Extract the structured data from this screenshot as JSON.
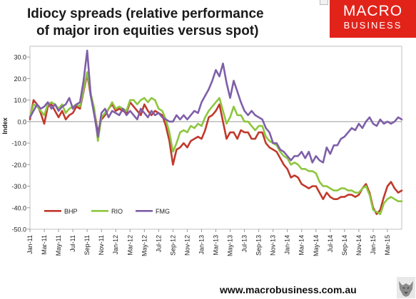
{
  "title_line1": "Idiocy spreads (relative performance",
  "title_line2": "of major iron equities versus spot)",
  "logo": {
    "line1": "MACRO",
    "line2": "BUSINESS",
    "color": "#e2231a"
  },
  "footer_url": "www.macrobusiness.com.au",
  "chart_data": {
    "type": "line",
    "ylabel": "Index",
    "ylim": [
      -50,
      35
    ],
    "yticks": [
      30,
      20,
      10,
      0,
      -10,
      -20,
      -30,
      -40,
      -50
    ],
    "ytick_labels": [
      "30.0",
      "20.0",
      "10.0",
      "0.0",
      "-10.0",
      "-20.0",
      "-30.0",
      "-40.0",
      "-50.0"
    ],
    "x_month_index_range": [
      0,
      52
    ],
    "xticks": [
      {
        "m": 0,
        "label": "Jan-11"
      },
      {
        "m": 2,
        "label": "Mar-11"
      },
      {
        "m": 4,
        "label": "May-11"
      },
      {
        "m": 6,
        "label": "Jul-11"
      },
      {
        "m": 8,
        "label": "Sep-11"
      },
      {
        "m": 10,
        "label": "Nov-11"
      },
      {
        "m": 12,
        "label": "Jan-12"
      },
      {
        "m": 14,
        "label": "Mar-12"
      },
      {
        "m": 16,
        "label": "May-12"
      },
      {
        "m": 18,
        "label": "Jul-12"
      },
      {
        "m": 20,
        "label": "Sep-12"
      },
      {
        "m": 22,
        "label": "Nov-12"
      },
      {
        "m": 24,
        "label": "Jan-13"
      },
      {
        "m": 26,
        "label": "Mar-13"
      },
      {
        "m": 28,
        "label": "May-13"
      },
      {
        "m": 30,
        "label": "Jul-13"
      },
      {
        "m": 32,
        "label": "Sep-13"
      },
      {
        "m": 34,
        "label": "Nov-13"
      },
      {
        "m": 36,
        "label": "Jan-14"
      },
      {
        "m": 38,
        "label": "Mar-14"
      },
      {
        "m": 40,
        "label": "May-14"
      },
      {
        "m": 42,
        "label": "Jul-14"
      },
      {
        "m": 44,
        "label": "Sep-14"
      },
      {
        "m": 46,
        "label": "Nov-14"
      },
      {
        "m": 48,
        "label": "Jan-15"
      },
      {
        "m": 50,
        "label": "Mar-15"
      }
    ],
    "legend": [
      "BHP",
      "RIO",
      "FMG"
    ],
    "legend_position": "lower-left",
    "grid": false,
    "series": [
      {
        "name": "BHP",
        "color": "#c0392b",
        "x": [
          0,
          0.5,
          1,
          1.5,
          2,
          2.5,
          3,
          3.5,
          4,
          4.5,
          5,
          5.5,
          6,
          6.5,
          7,
          7.5,
          8,
          8.5,
          9,
          9.5,
          10,
          10.5,
          11,
          11.5,
          12,
          12.5,
          13,
          13.5,
          14,
          14.5,
          15,
          15.5,
          16,
          16.5,
          17,
          17.5,
          18,
          18.5,
          19,
          19.5,
          20,
          20.5,
          21,
          21.5,
          22,
          22.5,
          23,
          23.5,
          24,
          24.5,
          25,
          25.5,
          26,
          26.5,
          27,
          27.5,
          28,
          28.5,
          29,
          29.5,
          30,
          30.5,
          31,
          31.5,
          32,
          32.5,
          33,
          33.5,
          34,
          34.5,
          35,
          35.5,
          36,
          36.5,
          37,
          37.5,
          38,
          38.5,
          39,
          39.5,
          40,
          40.5,
          41,
          41.5,
          42,
          42.5,
          43,
          43.5,
          44,
          44.5,
          45,
          45.5,
          46,
          46.5,
          47,
          47.5,
          48,
          48.5,
          49,
          49.5,
          50,
          50.5,
          51,
          51.5,
          52
        ],
        "values": [
          1,
          10,
          8,
          4,
          -1,
          7,
          8,
          5,
          2,
          5,
          1,
          3,
          4,
          7,
          6,
          14,
          22,
          12,
          5,
          -5,
          1,
          3,
          6,
          8,
          5,
          6,
          5,
          4,
          9,
          7,
          5,
          3,
          8,
          5,
          3,
          5,
          4,
          3,
          -2,
          -9,
          -20,
          -13,
          -12,
          -10,
          -12,
          -9,
          -8,
          -7,
          -8,
          -4,
          2,
          3,
          5,
          8,
          0,
          -8,
          -5,
          -5,
          -8,
          -4,
          -5,
          -5,
          -8,
          -8,
          -5,
          -5,
          -10,
          -12,
          -13,
          -14,
          -17,
          -20,
          -22,
          -26,
          -25,
          -26,
          -29,
          -30,
          -31,
          -30,
          -30,
          -33,
          -36,
          -33,
          -35,
          -36,
          -36,
          -35,
          -35,
          -34,
          -34,
          -35,
          -34,
          -31,
          -29,
          -33,
          -40,
          -43,
          -41,
          -35,
          -30,
          -28,
          -31,
          -33,
          -32
        ]
      },
      {
        "name": "RIO",
        "color": "#8dc63f",
        "x": [
          0,
          0.5,
          1,
          1.5,
          2,
          2.5,
          3,
          3.5,
          4,
          4.5,
          5,
          5.5,
          6,
          6.5,
          7,
          7.5,
          8,
          8.5,
          9,
          9.5,
          10,
          10.5,
          11,
          11.5,
          12,
          12.5,
          13,
          13.5,
          14,
          14.5,
          15,
          15.5,
          16,
          16.5,
          17,
          17.5,
          18,
          18.5,
          19,
          19.5,
          20,
          20.5,
          21,
          21.5,
          22,
          22.5,
          23,
          23.5,
          24,
          24.5,
          25,
          25.5,
          26,
          26.5,
          27,
          27.5,
          28,
          28.5,
          29,
          29.5,
          30,
          30.5,
          31,
          31.5,
          32,
          32.5,
          33,
          33.5,
          34,
          34.5,
          35,
          35.5,
          36,
          36.5,
          37,
          37.5,
          38,
          38.5,
          39,
          39.5,
          40,
          40.5,
          41,
          41.5,
          42,
          42.5,
          43,
          43.5,
          44,
          44.5,
          45,
          45.5,
          46,
          46.5,
          47,
          47.5,
          48,
          48.5,
          49,
          49.5,
          50,
          50.5,
          51,
          51.5,
          52
        ],
        "values": [
          2,
          8,
          7,
          5,
          3,
          8,
          9,
          8,
          6,
          8,
          4,
          6,
          7,
          8,
          7,
          15,
          23,
          13,
          6,
          -9,
          2,
          4,
          6,
          9,
          6,
          7,
          6,
          5,
          10,
          10,
          8,
          10,
          11,
          9,
          11,
          10,
          6,
          5,
          1,
          -5,
          -14,
          -10,
          -5,
          -4,
          -5,
          -2,
          -3,
          -1,
          -2,
          2,
          5,
          7,
          9,
          11,
          5,
          -1,
          2,
          7,
          3,
          3,
          0,
          0,
          -2,
          -4,
          -2,
          -2,
          -7,
          -9,
          -10,
          -11,
          -14,
          -16,
          -17,
          -20,
          -19,
          -20,
          -22,
          -22,
          -23,
          -23,
          -24,
          -28,
          -30,
          -30,
          -31,
          -32,
          -32,
          -31,
          -31,
          -32,
          -32,
          -33,
          -33,
          -31,
          -30,
          -34,
          -41,
          -42,
          -43,
          -38,
          -36,
          -35,
          -36,
          -37,
          -37
        ]
      },
      {
        "name": "FMG",
        "color": "#7e5fa8",
        "x": [
          0,
          0.5,
          1,
          1.5,
          2,
          2.5,
          3,
          3.5,
          4,
          4.5,
          5,
          5.5,
          6,
          6.5,
          7,
          7.5,
          8,
          8.5,
          9,
          9.5,
          10,
          10.5,
          11,
          11.5,
          12,
          12.5,
          13,
          13.5,
          14,
          14.5,
          15,
          15.5,
          16,
          16.5,
          17,
          17.5,
          18,
          18.5,
          19,
          19.5,
          20,
          20.5,
          21,
          21.5,
          22,
          22.5,
          23,
          23.5,
          24,
          24.5,
          25,
          25.5,
          26,
          26.5,
          27,
          27.5,
          28,
          28.5,
          29,
          29.5,
          30,
          30.5,
          31,
          31.5,
          32,
          32.5,
          33,
          33.5,
          34,
          34.5,
          35,
          35.5,
          36,
          36.5,
          37,
          37.5,
          38,
          38.5,
          39,
          39.5,
          40,
          40.5,
          41,
          41.5,
          42,
          42.5,
          43,
          43.5,
          44,
          44.5,
          45,
          45.5,
          46,
          46.5,
          47,
          47.5,
          48,
          48.5,
          49,
          49.5,
          50,
          50.5,
          51,
          51.5,
          52
        ],
        "values": [
          2,
          5,
          8,
          6,
          7,
          9,
          6,
          8,
          5,
          7,
          8,
          11,
          6,
          8,
          9,
          19,
          33,
          12,
          3,
          -7,
          4,
          6,
          2,
          5,
          4,
          3,
          6,
          3,
          5,
          3,
          1,
          6,
          4,
          2,
          5,
          3,
          4,
          2,
          1,
          0,
          0,
          3,
          1,
          3,
          1,
          3,
          5,
          4,
          9,
          12,
          15,
          19,
          24,
          21,
          27,
          18,
          11,
          19,
          14,
          9,
          5,
          3,
          5,
          3,
          2,
          1,
          -3,
          -5,
          -10,
          -10,
          -13,
          -14,
          -16,
          -18,
          -16,
          -16,
          -14,
          -17,
          -14,
          -19,
          -16,
          -18,
          -19,
          -12,
          -15,
          -11,
          -11,
          -8,
          -7,
          -5,
          -3,
          -4,
          -1,
          -3,
          0,
          2,
          -1,
          -2,
          1,
          -1,
          0,
          -1,
          0,
          2,
          1
        ]
      }
    ]
  }
}
